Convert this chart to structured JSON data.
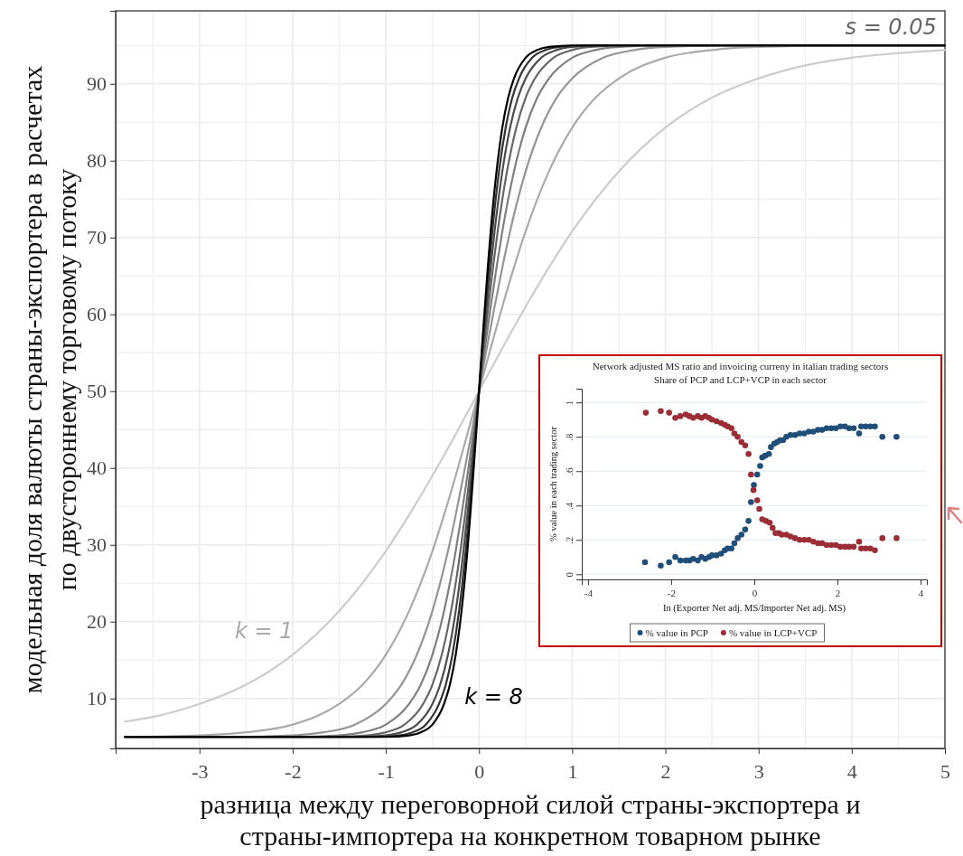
{
  "chart_data": [
    {
      "type": "line",
      "xlabel": "разница между переговорной силой страны-экспортера и страны-импортера на конкретном товарном рынке",
      "ylabel": "модельная доля валюты страны-экспортера в расчетах по двустороннему торговому потоку",
      "xlim": [
        -3.9,
        5
      ],
      "ylim": [
        3.5,
        99.5
      ],
      "xticks": [
        {
          "value": -3.5,
          "label": null
        },
        -3,
        {
          "value": -2.5,
          "label": null
        },
        -2,
        {
          "value": -1.5,
          "label": null
        },
        -1,
        {
          "value": -0.5,
          "label": null
        },
        0,
        {
          "value": 0.5,
          "label": null
        },
        1,
        {
          "value": 1.5,
          "label": null
        },
        2,
        {
          "value": 2.5,
          "label": null
        },
        3,
        {
          "value": 3.5,
          "label": null
        },
        4,
        {
          "value": 4.5,
          "label": null
        },
        5
      ],
      "yticks": [
        {
          "value": 5,
          "label": null
        },
        10,
        {
          "value": 15,
          "label": null
        },
        20,
        {
          "value": 25,
          "label": null
        },
        30,
        {
          "value": 35,
          "label": null
        },
        40,
        {
          "value": 45,
          "label": null
        },
        50,
        {
          "value": 55,
          "label": null
        },
        60,
        {
          "value": 65,
          "label": null
        },
        70,
        {
          "value": 75,
          "label": null
        },
        80,
        {
          "value": 85,
          "label": null
        },
        90,
        {
          "value": 95,
          "label": null
        }
      ],
      "grid": true,
      "legend": false,
      "line_style": "solid",
      "annotations": [
        "k = 1",
        "k = 8",
        "s = 0.05"
      ],
      "series": [
        {
          "color": "#cccccc",
          "x": [
            -3.8,
            -3.5,
            -3,
            -2.5,
            -2,
            -1.5,
            -1,
            -0.75,
            -0.5,
            -0.25,
            0,
            0.25,
            0.5,
            0.75,
            1,
            1.5,
            2,
            2.5,
            3,
            3.5,
            4,
            4.5,
            5
          ],
          "values": [
            7.0,
            7.6,
            9.3,
            11.8,
            15.7,
            21.4,
            29.2,
            33.9,
            39.0,
            44.4,
            50,
            55.6,
            61.0,
            66.1,
            70.8,
            78.6,
            84.3,
            88.2,
            90.7,
            92.4,
            93.4,
            94.0,
            94.4
          ]
        },
        {
          "color": "#aaaaaa",
          "x": [
            -3.8,
            -3,
            -2.5,
            -2,
            -1.5,
            -1.25,
            -1,
            -0.75,
            -0.5,
            -0.375,
            -0.25,
            -0.125,
            0,
            0.125,
            0.25,
            0.375,
            0.5,
            0.75,
            1,
            1.25,
            1.5,
            2,
            2.5,
            3,
            4,
            5
          ],
          "values": [
            5.0,
            5.2,
            5.6,
            6.6,
            9.3,
            11.8,
            15.7,
            21.4,
            29.2,
            33.9,
            39.0,
            44.4,
            50,
            55.6,
            61.0,
            66.1,
            70.8,
            78.6,
            84.3,
            88.2,
            90.7,
            93.4,
            94.4,
            94.8,
            95.0,
            95.0
          ]
        },
        {
          "color": "#959595",
          "x": [
            -3.8,
            -2.667,
            -2,
            -1.667,
            -1.333,
            -1,
            -0.833,
            -0.667,
            -0.5,
            -0.333,
            -0.25,
            -0.167,
            -0.083,
            0,
            0.083,
            0.167,
            0.25,
            0.333,
            0.5,
            0.667,
            0.833,
            1,
            1.333,
            1.667,
            2,
            2.667,
            5
          ],
          "values": [
            5.0,
            5.0,
            5.2,
            5.6,
            6.6,
            9.3,
            11.8,
            15.7,
            21.4,
            29.2,
            33.9,
            39.0,
            44.4,
            50,
            55.6,
            61.0,
            66.1,
            70.8,
            78.6,
            84.3,
            88.2,
            90.7,
            93.4,
            94.4,
            94.8,
            95.0,
            95.0
          ]
        },
        {
          "color": "#7f7f7f",
          "x": [
            -3.8,
            -2,
            -1.5,
            -1.25,
            -1,
            -0.75,
            -0.625,
            -0.5,
            -0.375,
            -0.25,
            -0.188,
            -0.125,
            -0.063,
            0,
            0.063,
            0.125,
            0.188,
            0.25,
            0.375,
            0.5,
            0.625,
            0.75,
            1,
            1.25,
            1.5,
            2,
            5
          ],
          "values": [
            5.0,
            5.0,
            5.2,
            5.6,
            6.6,
            9.3,
            11.8,
            15.7,
            21.4,
            29.2,
            33.9,
            39.0,
            44.4,
            50,
            55.6,
            61.0,
            66.1,
            70.8,
            78.6,
            84.3,
            88.2,
            90.7,
            93.4,
            94.4,
            94.8,
            95.0,
            95.0
          ]
        },
        {
          "color": "#666666",
          "x": [
            -3.8,
            -1.6,
            -1.2,
            -1,
            -0.8,
            -0.6,
            -0.5,
            -0.4,
            -0.3,
            -0.2,
            -0.15,
            -0.1,
            -0.05,
            0,
            0.05,
            0.1,
            0.15,
            0.2,
            0.3,
            0.4,
            0.5,
            0.6,
            0.8,
            1,
            1.2,
            1.6,
            5
          ],
          "values": [
            5.0,
            5.0,
            5.2,
            5.6,
            6.6,
            9.3,
            11.8,
            15.7,
            21.4,
            29.2,
            33.9,
            39.0,
            44.4,
            50,
            55.6,
            61.0,
            66.1,
            70.8,
            78.6,
            84.3,
            88.2,
            90.7,
            93.4,
            94.4,
            94.8,
            95.0,
            95.0
          ]
        },
        {
          "color": "#4d4d4d",
          "x": [
            -3.8,
            -1.333,
            -1,
            -0.833,
            -0.667,
            -0.5,
            -0.417,
            -0.333,
            -0.25,
            -0.167,
            -0.125,
            -0.083,
            -0.042,
            0,
            0.042,
            0.083,
            0.125,
            0.167,
            0.25,
            0.333,
            0.417,
            0.5,
            0.667,
            0.833,
            1,
            1.333,
            5
          ],
          "values": [
            5.0,
            5.0,
            5.2,
            5.6,
            6.6,
            9.3,
            11.8,
            15.7,
            21.4,
            29.2,
            33.9,
            39.0,
            44.4,
            50,
            55.6,
            61.0,
            66.1,
            70.8,
            78.6,
            84.3,
            88.2,
            90.7,
            93.4,
            94.4,
            94.8,
            95.0,
            95.0
          ]
        },
        {
          "color": "#333333",
          "x": [
            -3.8,
            -1.143,
            -0.857,
            -0.714,
            -0.571,
            -0.429,
            -0.357,
            -0.286,
            -0.214,
            -0.143,
            -0.107,
            -0.071,
            -0.036,
            0,
            0.036,
            0.071,
            0.107,
            0.143,
            0.214,
            0.286,
            0.357,
            0.429,
            0.571,
            0.714,
            0.857,
            1.143,
            5
          ],
          "values": [
            5.0,
            5.0,
            5.2,
            5.6,
            6.6,
            9.3,
            11.8,
            15.7,
            21.4,
            29.2,
            33.9,
            39.0,
            44.4,
            50,
            55.6,
            61.0,
            66.1,
            70.8,
            78.6,
            84.3,
            88.2,
            90.7,
            93.4,
            94.4,
            94.8,
            95.0,
            95.0
          ]
        },
        {
          "color": "#000000",
          "x": [
            -3.8,
            -1,
            -0.75,
            -0.625,
            -0.5,
            -0.375,
            -0.313,
            -0.25,
            -0.188,
            -0.125,
            -0.094,
            -0.063,
            -0.031,
            0,
            0.031,
            0.063,
            0.094,
            0.125,
            0.188,
            0.25,
            0.313,
            0.375,
            0.5,
            0.625,
            0.75,
            1,
            5
          ],
          "values": [
            5.0,
            5.0,
            5.2,
            5.6,
            6.6,
            9.3,
            11.8,
            15.7,
            21.4,
            29.2,
            33.9,
            39.0,
            44.4,
            50,
            55.6,
            61.0,
            66.1,
            70.8,
            78.6,
            84.3,
            88.2,
            90.7,
            93.4,
            94.4,
            94.8,
            95.0,
            95.0
          ]
        }
      ]
    },
    {
      "type": "scatter",
      "title": "Network adjusted MS ratio and invoicing curreny in italian trading sectors",
      "subtitle": "Share of PCP and LCP+VCP in each sector",
      "xlabel": "In (Exporter Net adj. MS/Importer Net adj. MS)",
      "ylabel": "% value in each trading sector",
      "xlim": [
        -4.15,
        4.15
      ],
      "ylim": [
        -0.03,
        1.08
      ],
      "xticks": [
        -4,
        -2,
        0,
        2,
        4
      ],
      "yticks": [
        0,
        {
          "value": 0.2,
          "label": ".2"
        },
        {
          "value": 0.4,
          "label": ".4"
        },
        {
          "value": 0.6,
          "label": ".6"
        },
        {
          "value": 0.8,
          "label": ".8"
        },
        1
      ],
      "grid": "y",
      "legend": "bottom",
      "marker": "circle",
      "series": [
        {
          "name": "% value in PCP",
          "color": "#1f4e79",
          "x": [
            -2.63,
            -2.25,
            -2.05,
            -1.9,
            -1.78,
            -1.65,
            -1.56,
            -1.47,
            -1.36,
            -1.27,
            -1.18,
            -1.09,
            -1.02,
            -0.91,
            -0.8,
            -0.71,
            -0.64,
            -0.55,
            -0.48,
            -0.4,
            -0.31,
            -0.22,
            -0.14,
            -0.08,
            -0.01,
            0.07,
            0.14,
            0.19,
            0.26,
            0.35,
            0.4,
            0.48,
            0.55,
            0.62,
            0.69,
            0.77,
            0.87,
            0.98,
            1.09,
            1.2,
            1.31,
            1.42,
            1.53,
            1.63,
            1.74,
            1.85,
            1.96,
            2.07,
            2.18,
            2.28,
            2.39,
            2.52,
            2.57,
            2.68,
            2.79,
            2.9,
            3.08,
            3.42
          ],
          "values": [
            0.07,
            0.05,
            0.07,
            0.1,
            0.08,
            0.08,
            0.08,
            0.09,
            0.08,
            0.1,
            0.09,
            0.1,
            0.11,
            0.11,
            0.12,
            0.14,
            0.15,
            0.15,
            0.18,
            0.21,
            0.23,
            0.26,
            0.31,
            0.42,
            0.52,
            0.58,
            0.63,
            0.68,
            0.69,
            0.7,
            0.74,
            0.76,
            0.77,
            0.78,
            0.78,
            0.8,
            0.81,
            0.81,
            0.82,
            0.82,
            0.83,
            0.83,
            0.84,
            0.84,
            0.85,
            0.85,
            0.85,
            0.86,
            0.86,
            0.85,
            0.85,
            0.82,
            0.86,
            0.86,
            0.86,
            0.86,
            0.8,
            0.8
          ]
        },
        {
          "name": "% value in LCP+VCP",
          "color": "#9b2d36",
          "x": [
            -2.61,
            -2.25,
            -2.05,
            -1.9,
            -1.78,
            -1.65,
            -1.56,
            -1.47,
            -1.36,
            -1.27,
            -1.18,
            -1.09,
            -1.02,
            -0.91,
            -0.8,
            -0.71,
            -0.64,
            -0.55,
            -0.48,
            -0.4,
            -0.31,
            -0.22,
            -0.14,
            -0.08,
            -0.02,
            0.07,
            0.12,
            0.19,
            0.28,
            0.37,
            0.44,
            0.51,
            0.59,
            0.66,
            0.77,
            0.87,
            0.98,
            1.09,
            1.2,
            1.31,
            1.42,
            1.53,
            1.63,
            1.74,
            1.85,
            1.96,
            2.07,
            2.18,
            2.28,
            2.39,
            2.52,
            2.57,
            2.68,
            2.79,
            2.9,
            3.08,
            3.42
          ],
          "values": [
            0.94,
            0.95,
            0.94,
            0.91,
            0.92,
            0.93,
            0.92,
            0.91,
            0.92,
            0.91,
            0.92,
            0.91,
            0.9,
            0.89,
            0.88,
            0.87,
            0.86,
            0.85,
            0.82,
            0.8,
            0.77,
            0.75,
            0.7,
            0.58,
            0.49,
            0.43,
            0.38,
            0.32,
            0.31,
            0.3,
            0.27,
            0.24,
            0.24,
            0.23,
            0.23,
            0.22,
            0.21,
            0.2,
            0.2,
            0.2,
            0.19,
            0.18,
            0.18,
            0.17,
            0.17,
            0.17,
            0.16,
            0.16,
            0.16,
            0.16,
            0.19,
            0.15,
            0.15,
            0.15,
            0.14,
            0.21,
            0.21
          ]
        }
      ]
    }
  ]
}
